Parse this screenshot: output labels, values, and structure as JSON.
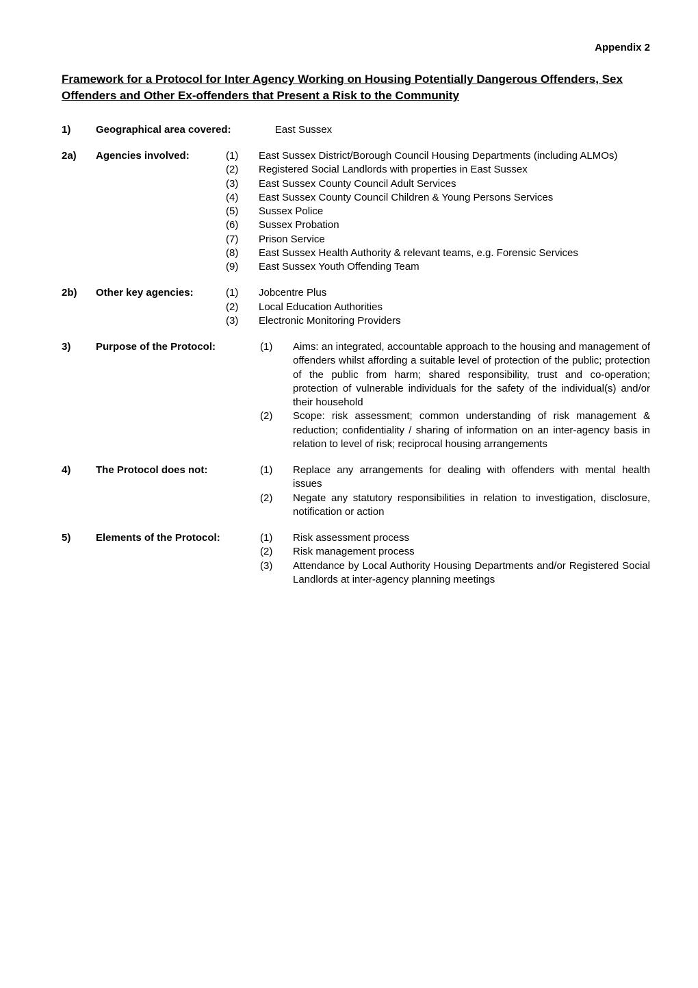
{
  "appendix": "Appendix 2",
  "title": "Framework for a Protocol for Inter Agency Working on Housing Potentially Dangerous Offenders, Sex Offenders and Other Ex-offenders that Present a Risk to the Community",
  "s1": {
    "num": "1)",
    "label": "Geographical area covered:",
    "value": "East Sussex"
  },
  "s2a": {
    "num": "2a)",
    "label": "Agencies involved:",
    "items": [
      {
        "n": "(1)",
        "t": "East Sussex District/Borough Council Housing Departments (including ALMOs)"
      },
      {
        "n": "(2)",
        "t": "Registered Social Landlords with properties in East Sussex"
      },
      {
        "n": "(3)",
        "t": "East Sussex County Council Adult Services"
      },
      {
        "n": "(4)",
        "t": "East Sussex County Council Children & Young Persons Services"
      },
      {
        "n": "(5)",
        "t": "Sussex Police"
      },
      {
        "n": "(6)",
        "t": "Sussex Probation"
      },
      {
        "n": "(7)",
        "t": "Prison Service"
      },
      {
        "n": "(8)",
        "t": "East Sussex Health Authority & relevant teams, e.g. Forensic Services"
      },
      {
        "n": "(9)",
        "t": "East Sussex Youth Offending Team"
      }
    ]
  },
  "s2b": {
    "num": "2b)",
    "label": "Other key agencies:",
    "items": [
      {
        "n": "(1)",
        "t": "Jobcentre Plus"
      },
      {
        "n": "(2)",
        "t": "Local Education Authorities"
      },
      {
        "n": "(3)",
        "t": "Electronic Monitoring Providers"
      }
    ]
  },
  "s3": {
    "num": "3)",
    "label": "Purpose of the Protocol:",
    "items": [
      {
        "n": "(1)",
        "t": "Aims: an integrated, accountable approach to the housing and management of offenders whilst affording a suitable level of protection of the public; protection of the public from harm; shared responsibility, trust and co-operation; protection of vulnerable individuals for the safety of the individual(s) and/or their household"
      },
      {
        "n": "(2)",
        "t": "Scope: risk assessment; common understanding of risk management & reduction; confidentiality / sharing of information on an inter-agency basis in relation to level of risk; reciprocal housing arrangements"
      }
    ]
  },
  "s4": {
    "num": "4)",
    "label": "The Protocol does not:",
    "items": [
      {
        "n": "(1)",
        "t": "Replace any arrangements for dealing with offenders with mental health issues"
      },
      {
        "n": "(2)",
        "t": "Negate any statutory responsibilities in relation to investigation, disclosure, notification or action"
      }
    ]
  },
  "s5": {
    "num": "5)",
    "label": "Elements of the Protocol:",
    "items": [
      {
        "n": "(1)",
        "t": "Risk assessment process"
      },
      {
        "n": "(2)",
        "t": "Risk management process"
      },
      {
        "n": "(3)",
        "t": "Attendance by Local Authority Housing Departments and/or Registered Social Landlords at inter-agency planning meetings"
      }
    ]
  }
}
